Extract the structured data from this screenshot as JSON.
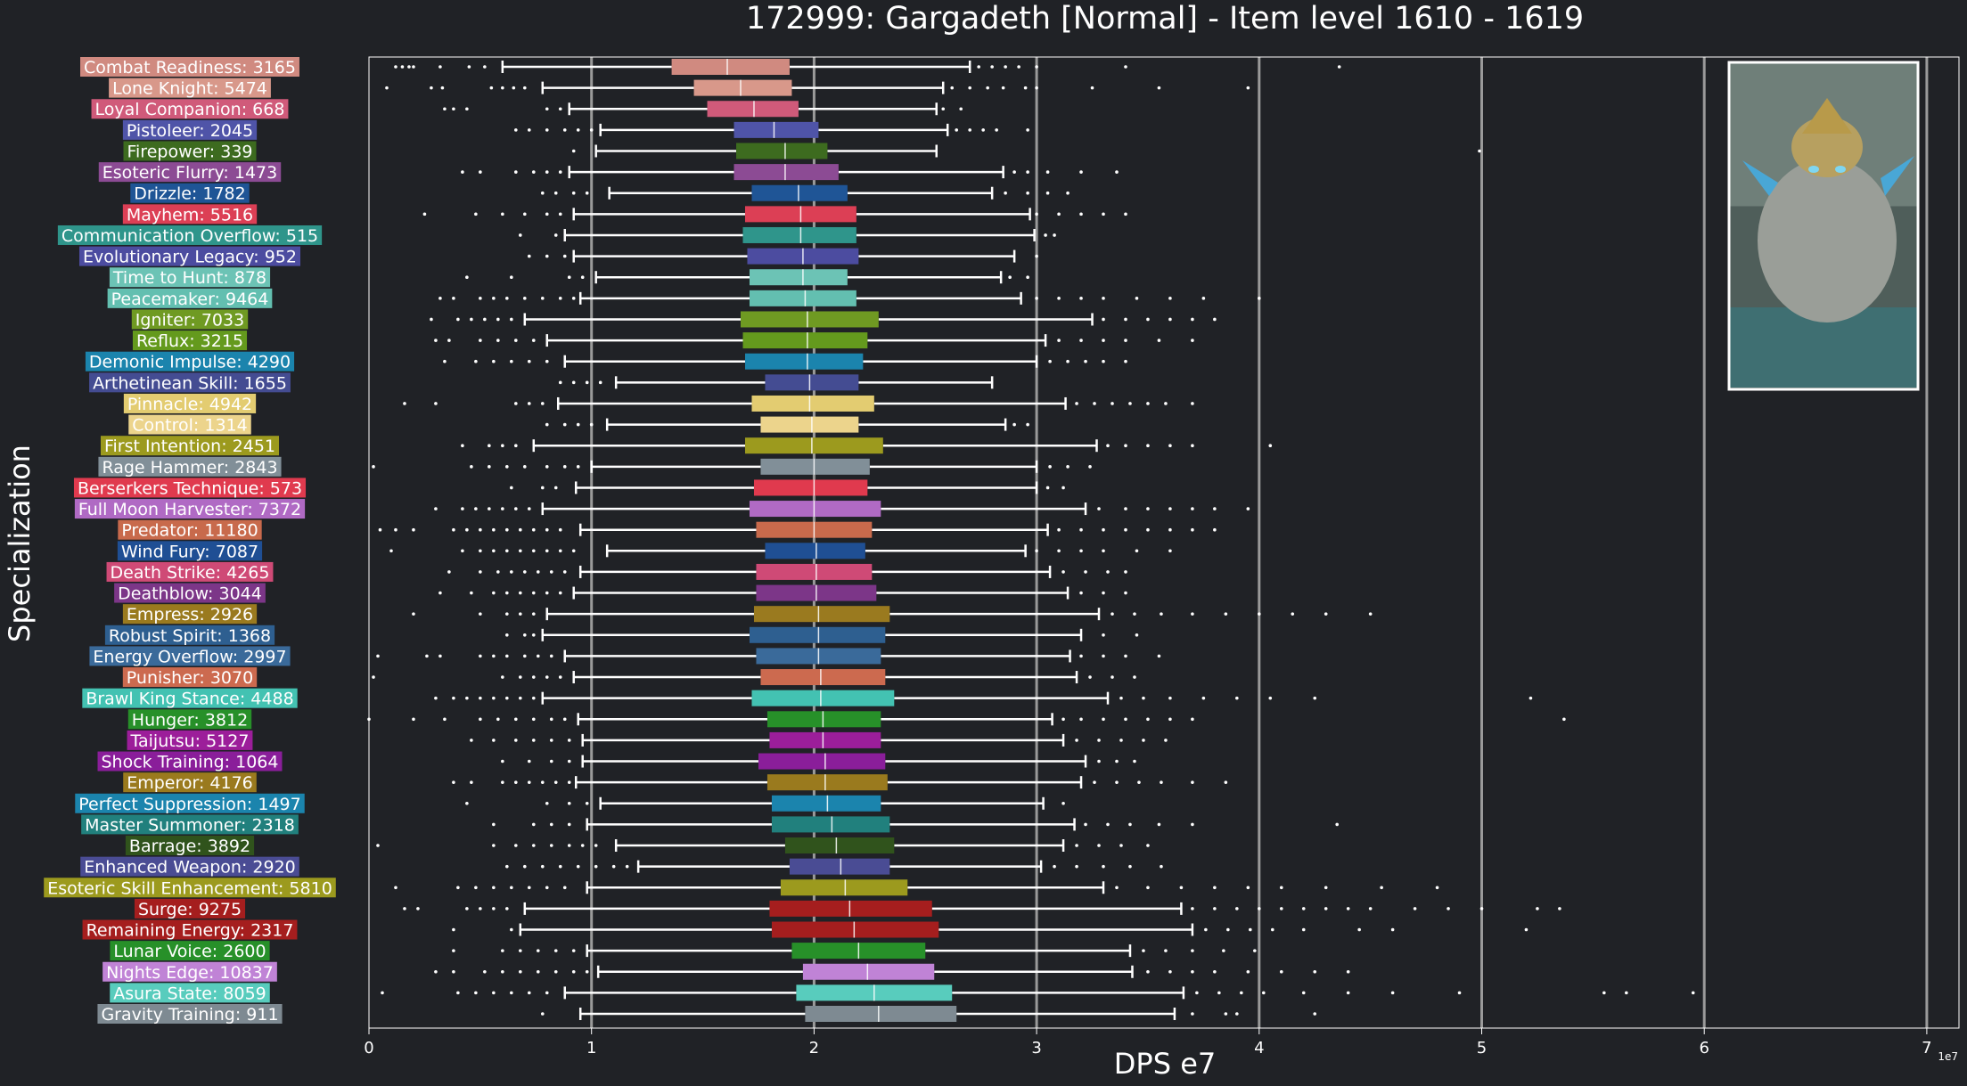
{
  "chart_data": {
    "type": "box",
    "title": "172999: Gargadeth [Normal] - Item level 1610 - 1619",
    "xlabel": "DPS e7",
    "ylabel": "Specialization",
    "offset_label": "1e7",
    "xlim": [
      0,
      7.15
    ],
    "xticks": [
      0,
      1,
      2,
      3,
      4,
      5,
      6,
      7
    ],
    "vlines": [
      1,
      2,
      3,
      4,
      5,
      6,
      7
    ],
    "grid": false,
    "categories": [
      {
        "label": "Combat Readiness: 3165",
        "color": "#d08a80",
        "wlo": 0.6,
        "q1": 1.36,
        "med": 1.61,
        "q3": 1.89,
        "whi": 2.7,
        "fliers": [
          0.12,
          0.15,
          0.18,
          0.2,
          0.32,
          0.45,
          0.52,
          2.74,
          2.8,
          2.86,
          2.92,
          3.0,
          3.4,
          4.36
        ]
      },
      {
        "label": "Lone Knight: 5474",
        "color": "#d8988a",
        "wlo": 0.78,
        "q1": 1.46,
        "med": 1.67,
        "q3": 1.9,
        "whi": 2.58,
        "fliers": [
          0.08,
          0.28,
          0.33,
          0.55,
          0.6,
          0.65,
          0.7,
          2.62,
          2.7,
          2.78,
          2.85,
          2.95,
          3.0,
          3.25,
          3.55,
          3.95
        ]
      },
      {
        "label": "Loyal Companion: 668",
        "color": "#d05a7a",
        "wlo": 0.9,
        "q1": 1.52,
        "med": 1.73,
        "q3": 1.93,
        "whi": 2.55,
        "fliers": [
          0.34,
          0.38,
          0.44,
          0.8,
          0.86,
          2.58,
          2.66
        ]
      },
      {
        "label": "Pistoleer: 2045",
        "color": "#4f54a8",
        "wlo": 1.04,
        "q1": 1.64,
        "med": 1.82,
        "q3": 2.02,
        "whi": 2.6,
        "fliers": [
          0.66,
          0.72,
          0.8,
          0.88,
          0.94,
          1.0,
          2.64,
          2.7,
          2.76,
          2.82,
          2.96
        ]
      },
      {
        "label": "Firepower: 339",
        "color": "#3d6b1f",
        "wlo": 1.02,
        "q1": 1.65,
        "med": 1.87,
        "q3": 2.06,
        "whi": 2.55,
        "fliers": [
          0.92,
          4.99
        ]
      },
      {
        "label": "Esoteric Flurry: 1473",
        "color": "#8c4b94",
        "wlo": 0.9,
        "q1": 1.64,
        "med": 1.87,
        "q3": 2.11,
        "whi": 2.85,
        "fliers": [
          0.42,
          0.5,
          0.66,
          0.74,
          0.8,
          0.86,
          2.9,
          2.96,
          3.05,
          3.2,
          3.36
        ]
      },
      {
        "label": "Drizzle: 1782",
        "color": "#1f5596",
        "wlo": 1.08,
        "q1": 1.72,
        "med": 1.93,
        "q3": 2.15,
        "whi": 2.8,
        "fliers": [
          0.78,
          0.84,
          0.92,
          0.98,
          2.86,
          2.96,
          3.05,
          3.14
        ]
      },
      {
        "label": "Mayhem: 5516",
        "color": "#dc3f55",
        "wlo": 0.92,
        "q1": 1.69,
        "med": 1.94,
        "q3": 2.19,
        "whi": 2.97,
        "fliers": [
          0.25,
          0.48,
          0.6,
          0.7,
          0.8,
          0.86,
          3.0,
          3.1,
          3.2,
          3.3,
          3.4
        ]
      },
      {
        "label": "Communication Overflow: 515",
        "color": "#2f958b",
        "wlo": 0.88,
        "q1": 1.68,
        "med": 1.94,
        "q3": 2.19,
        "whi": 2.99,
        "fliers": [
          0.68,
          0.84,
          3.04,
          3.08
        ]
      },
      {
        "label": "Evolutionary Legacy: 952",
        "color": "#4c4ca0",
        "wlo": 0.92,
        "q1": 1.7,
        "med": 1.95,
        "q3": 2.2,
        "whi": 2.9,
        "fliers": [
          0.72,
          0.8,
          0.88,
          3.0
        ]
      },
      {
        "label": "Time to Hunt: 878",
        "color": "#6cc3b5",
        "wlo": 1.02,
        "q1": 1.71,
        "med": 1.95,
        "q3": 2.15,
        "whi": 2.84,
        "fliers": [
          0.44,
          0.64,
          0.9,
          0.96,
          2.88,
          2.96
        ]
      },
      {
        "label": "Peacemaker: 9464",
        "color": "#63bfb0",
        "wlo": 0.95,
        "q1": 1.71,
        "med": 1.96,
        "q3": 2.19,
        "whi": 2.93,
        "fliers": [
          0.32,
          0.38,
          0.5,
          0.56,
          0.62,
          0.7,
          0.78,
          0.86,
          0.92,
          3.0,
          3.1,
          3.2,
          3.3,
          3.45,
          3.6,
          3.75,
          4.0
        ]
      },
      {
        "label": "Igniter: 7033",
        "color": "#6f9a22",
        "wlo": 0.7,
        "q1": 1.67,
        "med": 1.97,
        "q3": 2.29,
        "whi": 3.25,
        "fliers": [
          0.28,
          0.4,
          0.46,
          0.52,
          0.58,
          0.64,
          3.3,
          3.4,
          3.5,
          3.6,
          3.7,
          3.8
        ]
      },
      {
        "label": "Reflux: 3215",
        "color": "#649a1d",
        "wlo": 0.8,
        "q1": 1.68,
        "med": 1.97,
        "q3": 2.24,
        "whi": 3.04,
        "fliers": [
          0.3,
          0.36,
          0.5,
          0.58,
          0.66,
          0.74,
          3.1,
          3.2,
          3.3,
          3.4,
          3.55,
          3.7
        ]
      },
      {
        "label": "Demonic Impulse: 4290",
        "color": "#1b84ad",
        "wlo": 0.88,
        "q1": 1.69,
        "med": 1.97,
        "q3": 2.22,
        "whi": 3.0,
        "fliers": [
          0.34,
          0.48,
          0.56,
          0.64,
          0.72,
          0.8,
          3.06,
          3.14,
          3.22,
          3.3,
          3.4
        ]
      },
      {
        "label": "Arthetinean Skill: 1655",
        "color": "#444c92",
        "wlo": 1.11,
        "q1": 1.78,
        "med": 1.98,
        "q3": 2.2,
        "whi": 2.8,
        "fliers": [
          0.86,
          0.92,
          0.98,
          1.04
        ]
      },
      {
        "label": "Pinnacle: 4942",
        "color": "#e3cc71",
        "wlo": 0.85,
        "q1": 1.72,
        "med": 1.98,
        "q3": 2.27,
        "whi": 3.13,
        "fliers": [
          0.16,
          0.3,
          0.66,
          0.72,
          0.78,
          3.18,
          3.26,
          3.34,
          3.42,
          3.5,
          3.58,
          3.7
        ]
      },
      {
        "label": "Control: 1314",
        "color": "#ecd48c",
        "wlo": 1.07,
        "q1": 1.76,
        "med": 1.99,
        "q3": 2.2,
        "whi": 2.86,
        "fliers": [
          0.8,
          0.88,
          0.94,
          1.0,
          2.9,
          2.96
        ]
      },
      {
        "label": "First Intention: 2451",
        "color": "#9c9a1e",
        "wlo": 0.74,
        "q1": 1.69,
        "med": 1.99,
        "q3": 2.31,
        "whi": 3.27,
        "fliers": [
          0.42,
          0.54,
          0.6,
          0.66,
          3.32,
          3.4,
          3.5,
          3.6,
          3.7,
          4.05
        ]
      },
      {
        "label": "Rage Hammer: 2843",
        "color": "#818f98",
        "wlo": 1.0,
        "q1": 1.76,
        "med": 2.0,
        "q3": 2.25,
        "whi": 3.0,
        "fliers": [
          0.02,
          0.46,
          0.54,
          0.62,
          0.7,
          0.8,
          0.88,
          0.94,
          3.06,
          3.14,
          3.24
        ]
      },
      {
        "label": "Berserkers Technique: 573",
        "color": "#e03a4e",
        "wlo": 0.93,
        "q1": 1.73,
        "med": 2.0,
        "q3": 2.24,
        "whi": 3.0,
        "fliers": [
          0.64,
          0.78,
          0.84,
          3.05,
          3.12
        ]
      },
      {
        "label": "Full Moon Harvester: 7372",
        "color": "#b06ac4",
        "wlo": 0.78,
        "q1": 1.71,
        "med": 2.0,
        "q3": 2.3,
        "whi": 3.22,
        "fliers": [
          0.3,
          0.42,
          0.48,
          0.54,
          0.6,
          0.66,
          0.72,
          3.28,
          3.4,
          3.5,
          3.6,
          3.7,
          3.8,
          3.95
        ]
      },
      {
        "label": "Predator: 11180",
        "color": "#c86a4c",
        "wlo": 0.95,
        "q1": 1.74,
        "med": 2.0,
        "q3": 2.26,
        "whi": 3.05,
        "fliers": [
          0.05,
          0.12,
          0.2,
          0.38,
          0.44,
          0.5,
          0.56,
          0.62,
          0.68,
          0.74,
          0.8,
          0.86,
          3.1,
          3.2,
          3.3,
          3.4,
          3.5,
          3.6,
          3.7,
          3.8
        ]
      },
      {
        "label": "Wind Fury: 7087",
        "color": "#1f4f94",
        "wlo": 1.07,
        "q1": 1.78,
        "med": 2.01,
        "q3": 2.23,
        "whi": 2.95,
        "fliers": [
          0.1,
          0.42,
          0.5,
          0.56,
          0.62,
          0.68,
          0.74,
          0.8,
          0.86,
          0.92,
          3.0,
          3.1,
          3.2,
          3.3,
          3.45,
          3.6
        ]
      },
      {
        "label": "Death Strike: 4265",
        "color": "#cf4a76",
        "wlo": 0.95,
        "q1": 1.74,
        "med": 2.01,
        "q3": 2.26,
        "whi": 3.06,
        "fliers": [
          0.36,
          0.5,
          0.58,
          0.64,
          0.7,
          0.76,
          0.82,
          0.88,
          3.12,
          3.22,
          3.32,
          3.4
        ]
      },
      {
        "label": "Deathblow: 3044",
        "color": "#7c3688",
        "wlo": 0.92,
        "q1": 1.74,
        "med": 2.01,
        "q3": 2.28,
        "whi": 3.14,
        "fliers": [
          0.32,
          0.46,
          0.56,
          0.62,
          0.68,
          0.74,
          0.8,
          0.86,
          3.2,
          3.3,
          3.4
        ]
      },
      {
        "label": "Empress: 2926",
        "color": "#9a7a1f",
        "wlo": 0.8,
        "q1": 1.73,
        "med": 2.02,
        "q3": 2.34,
        "whi": 3.28,
        "fliers": [
          0.2,
          0.5,
          0.62,
          0.68,
          0.74,
          3.34,
          3.44,
          3.56,
          3.7,
          3.85,
          4.0,
          4.15,
          4.3,
          4.5
        ]
      },
      {
        "label": "Robust Spirit: 1368",
        "color": "#2e5f90",
        "wlo": 0.78,
        "q1": 1.71,
        "med": 2.02,
        "q3": 2.32,
        "whi": 3.2,
        "fliers": [
          0.62,
          0.7,
          0.74,
          3.3,
          3.45
        ]
      },
      {
        "label": "Energy Overflow: 2997",
        "color": "#3a6a9a",
        "wlo": 0.88,
        "q1": 1.74,
        "med": 2.02,
        "q3": 2.3,
        "whi": 3.15,
        "fliers": [
          0.04,
          0.26,
          0.32,
          0.5,
          0.56,
          0.62,
          0.7,
          0.76,
          0.82,
          3.2,
          3.3,
          3.4,
          3.55
        ]
      },
      {
        "label": "Punisher: 3070",
        "color": "#cc6a4f",
        "wlo": 0.92,
        "q1": 1.76,
        "med": 2.03,
        "q3": 2.32,
        "whi": 3.18,
        "fliers": [
          0.02,
          0.6,
          0.68,
          0.74,
          0.8,
          0.86,
          3.24,
          3.34,
          3.44
        ]
      },
      {
        "label": "Brawl King Stance: 4488",
        "color": "#43c2b2",
        "wlo": 0.78,
        "q1": 1.72,
        "med": 2.03,
        "q3": 2.36,
        "whi": 3.32,
        "fliers": [
          0.3,
          0.38,
          0.44,
          0.5,
          0.56,
          0.62,
          0.68,
          0.74,
          3.38,
          3.48,
          3.6,
          3.75,
          3.9,
          4.05,
          4.25,
          5.22
        ]
      },
      {
        "label": "Hunger: 3812",
        "color": "#279029",
        "wlo": 0.94,
        "q1": 1.79,
        "med": 2.04,
        "q3": 2.3,
        "whi": 3.07,
        "fliers": [
          0.0,
          0.2,
          0.34,
          0.5,
          0.58,
          0.66,
          0.74,
          0.82,
          0.88,
          3.12,
          3.2,
          3.3,
          3.4,
          3.5,
          3.6,
          3.7,
          5.37
        ]
      },
      {
        "label": "Taijutsu: 5127",
        "color": "#9c1e9a",
        "wlo": 0.96,
        "q1": 1.8,
        "med": 2.04,
        "q3": 2.3,
        "whi": 3.12,
        "fliers": [
          0.46,
          0.56,
          0.66,
          0.74,
          0.82,
          0.9,
          3.18,
          3.28,
          3.38,
          3.48,
          3.58
        ]
      },
      {
        "label": "Shock Training: 1064",
        "color": "#8a1e9a",
        "wlo": 0.96,
        "q1": 1.75,
        "med": 2.05,
        "q3": 2.32,
        "whi": 3.22,
        "fliers": [
          0.6,
          0.72,
          0.82,
          0.9,
          3.28,
          3.36,
          3.44
        ]
      },
      {
        "label": "Emperor: 4176",
        "color": "#9a7a1e",
        "wlo": 0.93,
        "q1": 1.79,
        "med": 2.05,
        "q3": 2.33,
        "whi": 3.2,
        "fliers": [
          0.38,
          0.46,
          0.6,
          0.66,
          0.72,
          0.78,
          0.84,
          0.9,
          3.26,
          3.36,
          3.46,
          3.56,
          3.7,
          3.85
        ]
      },
      {
        "label": "Perfect Suppression: 1497",
        "color": "#1b84ad",
        "wlo": 1.04,
        "q1": 1.81,
        "med": 2.06,
        "q3": 2.3,
        "whi": 3.03,
        "fliers": [
          0.44,
          0.8,
          0.9,
          0.98,
          3.12
        ]
      },
      {
        "label": "Master Summoner: 2318",
        "color": "#21807d",
        "wlo": 0.98,
        "q1": 1.81,
        "med": 2.08,
        "q3": 2.34,
        "whi": 3.17,
        "fliers": [
          0.56,
          0.74,
          0.82,
          0.9,
          3.22,
          3.32,
          3.42,
          3.55,
          3.7,
          4.35
        ]
      },
      {
        "label": "Barrage: 3892",
        "color": "#30531c",
        "wlo": 1.11,
        "q1": 1.87,
        "med": 2.1,
        "q3": 2.36,
        "whi": 3.12,
        "fliers": [
          0.04,
          0.56,
          0.66,
          0.74,
          0.82,
          0.9,
          0.96,
          1.02,
          3.18,
          3.28,
          3.38,
          3.5
        ]
      },
      {
        "label": "Enhanced Weapon: 2920",
        "color": "#4a4c94",
        "wlo": 1.21,
        "q1": 1.89,
        "med": 2.12,
        "q3": 2.34,
        "whi": 3.02,
        "fliers": [
          0.62,
          0.7,
          0.78,
          0.86,
          0.94,
          1.02,
          1.1,
          1.16,
          3.08,
          3.18,
          3.3,
          3.42,
          3.56
        ]
      },
      {
        "label": "Esoteric Skill Enhancement: 5810",
        "color": "#9c9a1e",
        "wlo": 0.98,
        "q1": 1.85,
        "med": 2.14,
        "q3": 2.42,
        "whi": 3.3,
        "fliers": [
          0.12,
          0.4,
          0.48,
          0.56,
          0.64,
          0.72,
          0.8,
          0.88,
          3.36,
          3.5,
          3.65,
          3.8,
          3.95,
          4.1,
          4.3,
          4.55,
          4.8
        ]
      },
      {
        "label": "Surge: 9275",
        "color": "#a51e1e",
        "wlo": 0.7,
        "q1": 1.8,
        "med": 2.16,
        "q3": 2.53,
        "whi": 3.65,
        "fliers": [
          0.16,
          0.22,
          0.44,
          0.5,
          0.56,
          0.62,
          3.7,
          3.8,
          3.9,
          4.0,
          4.1,
          4.2,
          4.3,
          4.4,
          4.5,
          4.7,
          4.85,
          5.0,
          5.25,
          5.35
        ]
      },
      {
        "label": "Remaining Energy: 2317",
        "color": "#a51e1e",
        "wlo": 0.68,
        "q1": 1.81,
        "med": 2.18,
        "q3": 2.56,
        "whi": 3.7,
        "fliers": [
          0.38,
          0.64,
          3.76,
          3.86,
          3.96,
          4.06,
          4.2,
          4.45,
          4.6,
          5.2
        ]
      },
      {
        "label": "Lunar Voice: 2600",
        "color": "#279029",
        "wlo": 0.98,
        "q1": 1.9,
        "med": 2.2,
        "q3": 2.5,
        "whi": 3.42,
        "fliers": [
          0.38,
          0.6,
          0.68,
          0.76,
          0.84,
          0.92,
          3.48,
          3.58,
          3.7,
          3.84,
          3.98
        ]
      },
      {
        "label": "Nights Edge: 10837",
        "color": "#c083d6",
        "wlo": 1.03,
        "q1": 1.95,
        "med": 2.24,
        "q3": 2.54,
        "whi": 3.43,
        "fliers": [
          0.3,
          0.38,
          0.52,
          0.6,
          0.68,
          0.76,
          0.84,
          0.92,
          0.98,
          3.5,
          3.6,
          3.7,
          3.8,
          3.95,
          4.1,
          4.25,
          4.4
        ]
      },
      {
        "label": "Asura State: 8059",
        "color": "#58ccbd",
        "wlo": 0.88,
        "q1": 1.92,
        "med": 2.27,
        "q3": 2.62,
        "whi": 3.66,
        "fliers": [
          0.06,
          0.4,
          0.48,
          0.56,
          0.64,
          0.72,
          0.8,
          3.72,
          3.82,
          3.92,
          4.02,
          4.2,
          4.4,
          4.6,
          4.9,
          5.55,
          5.65,
          5.95
        ]
      },
      {
        "label": "Gravity Training: 911",
        "color": "#7e8a92",
        "wlo": 0.95,
        "q1": 1.96,
        "med": 2.29,
        "q3": 2.64,
        "whi": 3.62,
        "fliers": [
          0.78,
          3.7,
          3.85,
          3.9,
          4.25
        ]
      }
    ]
  }
}
